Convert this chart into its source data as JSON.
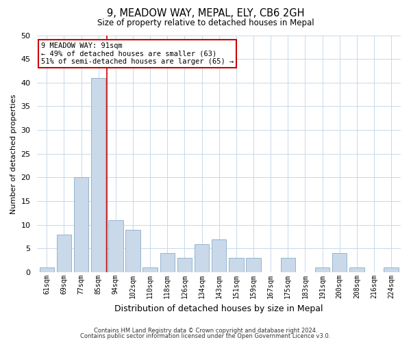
{
  "title": "9, MEADOW WAY, MEPAL, ELY, CB6 2GH",
  "subtitle": "Size of property relative to detached houses in Mepal",
  "xlabel": "Distribution of detached houses by size in Mepal",
  "ylabel": "Number of detached properties",
  "footnote1": "Contains HM Land Registry data © Crown copyright and database right 2024.",
  "footnote2": "Contains public sector information licensed under the Open Government Licence v3.0.",
  "bin_labels": [
    "61sqm",
    "69sqm",
    "77sqm",
    "85sqm",
    "94sqm",
    "102sqm",
    "110sqm",
    "118sqm",
    "126sqm",
    "134sqm",
    "143sqm",
    "151sqm",
    "159sqm",
    "167sqm",
    "175sqm",
    "183sqm",
    "191sqm",
    "200sqm",
    "208sqm",
    "216sqm",
    "224sqm"
  ],
  "bar_values": [
    1,
    8,
    20,
    41,
    11,
    9,
    1,
    4,
    3,
    6,
    7,
    3,
    3,
    0,
    3,
    0,
    1,
    4,
    1,
    0,
    1
  ],
  "bar_color": "#c9d9ea",
  "bar_edge_color": "#95b4cc",
  "vline_x": 3.5,
  "vline_color": "#cc0000",
  "annotation_line1": "9 MEADOW WAY: 91sqm",
  "annotation_line2": "← 49% of detached houses are smaller (63)",
  "annotation_line3": "51% of semi-detached houses are larger (65) →",
  "annotation_box_color": "#ffffff",
  "annotation_box_edge": "#cc0000",
  "ylim": [
    0,
    50
  ],
  "yticks": [
    0,
    5,
    10,
    15,
    20,
    25,
    30,
    35,
    40,
    45,
    50
  ],
  "background_color": "#ffffff",
  "grid_color": "#c8d8e8"
}
